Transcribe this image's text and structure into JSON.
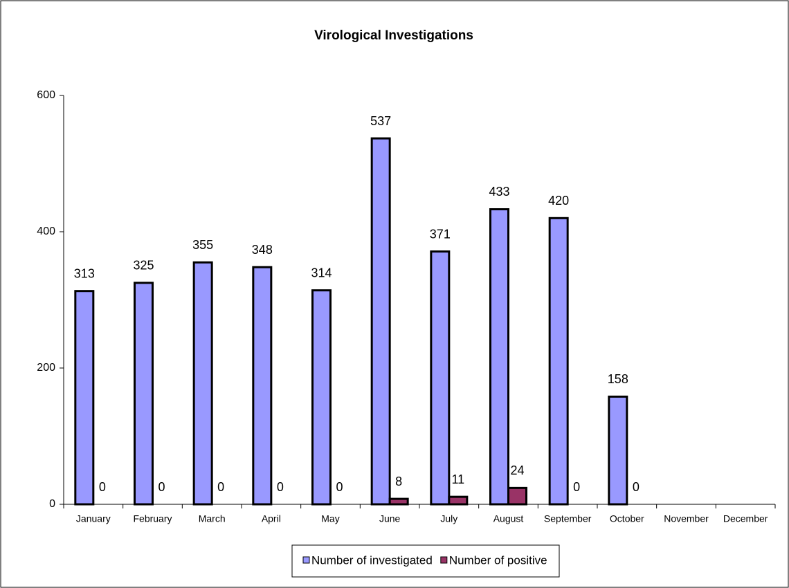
{
  "chart_data": {
    "type": "bar",
    "title": "Virological Investigations",
    "categories": [
      "January",
      "February",
      "March",
      "April",
      "May",
      "June",
      "July",
      "August",
      "September",
      "October",
      "November",
      "December"
    ],
    "series": [
      {
        "name": "Number of investigated",
        "color": "#9999ff",
        "values": [
          313,
          325,
          355,
          348,
          314,
          537,
          371,
          433,
          420,
          158,
          null,
          null
        ]
      },
      {
        "name": "Number of positive",
        "color": "#993366",
        "values": [
          0,
          0,
          0,
          0,
          0,
          8,
          11,
          24,
          0,
          0,
          null,
          null
        ]
      }
    ],
    "ylim": [
      0,
      600
    ],
    "yticks": [
      0,
      200,
      400,
      600
    ],
    "grid": false,
    "legend": "bottom"
  }
}
